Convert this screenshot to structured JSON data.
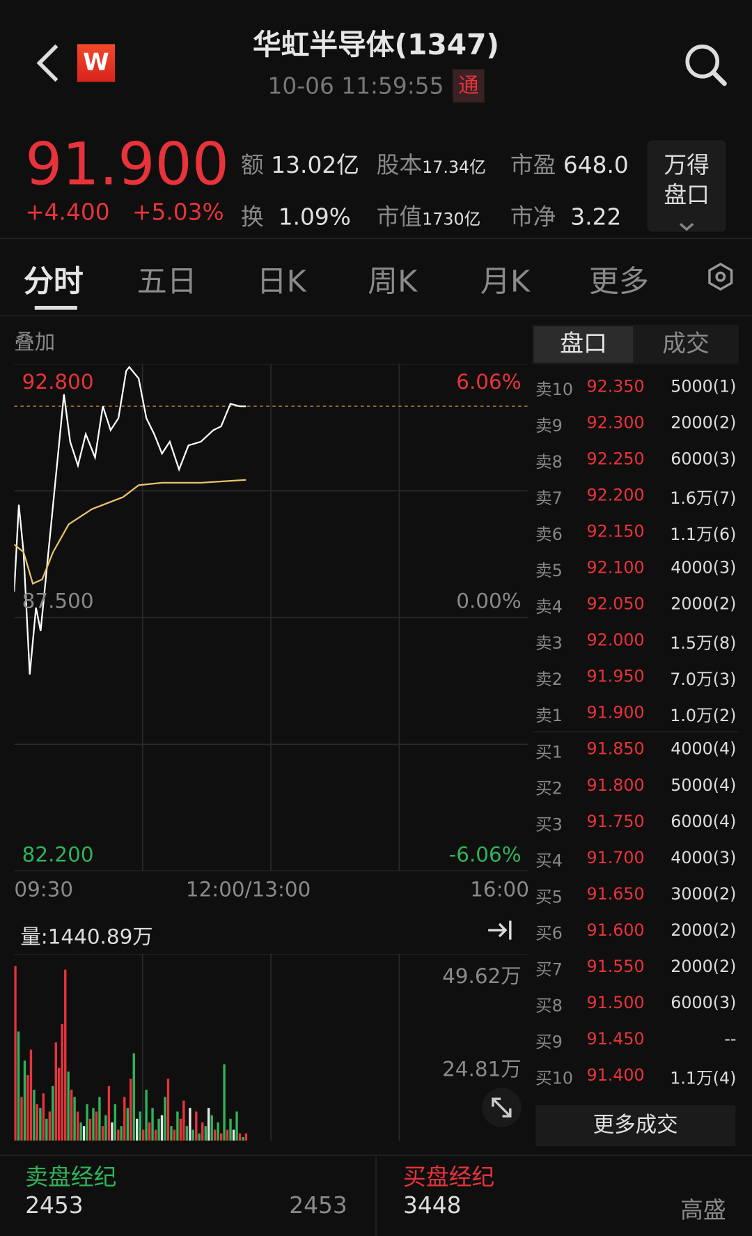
{
  "header": {
    "title": "华虹半导体(1347)",
    "datetime": "10-06 11:59:55",
    "connect_badge": "通",
    "logo": "W"
  },
  "quote": {
    "price": "91.900",
    "change": "+4.400",
    "change_pct": "+5.03%",
    "stats": [
      {
        "label": "额",
        "value": "13.02亿"
      },
      {
        "label": "股本",
        "value": "17.34亿"
      },
      {
        "label": "市盈",
        "value": "648.0"
      },
      {
        "label": "换",
        "value": "1.09%"
      },
      {
        "label": "市值",
        "value": "1730亿"
      },
      {
        "label": "市净",
        "value": "3.22"
      }
    ],
    "wind_button": [
      "万得",
      "盘口"
    ]
  },
  "tabs": [
    "分时",
    "五日",
    "日K",
    "周K",
    "月K",
    "更多"
  ],
  "active_tab": "分时",
  "overlay_label": "叠加",
  "orderbook_tabs": [
    "盘口",
    "成交"
  ],
  "chart_data": [
    {
      "type": "line",
      "y_labels": {
        "top": "92.800",
        "mid": "87.500",
        "bottom": "82.200"
      },
      "pct_labels": {
        "top": "6.06%",
        "mid": "0.00%",
        "bottom": "-6.06%"
      },
      "x_labels": [
        "09:30",
        "12:00/13:00",
        "16:00"
      ],
      "ylim": [
        82.2,
        92.8
      ],
      "prev_close": 87.5,
      "series": [
        {
          "color": "#ffffff",
          "x": [
            "09:30",
            "09:33",
            "09:36",
            "09:40",
            "09:44",
            "09:47",
            "09:51",
            "09:55",
            "09:59",
            "10:02",
            "10:06",
            "10:11",
            "10:16",
            "10:22",
            "10:27",
            "10:32",
            "10:37",
            "10:42",
            "10:44",
            "10:50",
            "10:55",
            "11:00",
            "11:05",
            "11:10",
            "11:16",
            "11:22",
            "11:30",
            "11:38",
            "11:43",
            "11:49",
            "11:55",
            "11:59"
          ],
          "y": [
            88.04,
            89.86,
            88.87,
            86.31,
            87.71,
            87.22,
            88.54,
            89.86,
            91.18,
            92.17,
            91.18,
            90.68,
            91.34,
            90.85,
            91.92,
            91.42,
            91.67,
            92.66,
            92.74,
            92.5,
            91.67,
            91.34,
            90.93,
            91.18,
            90.6,
            91.1,
            91.18,
            91.42,
            91.5,
            91.97,
            91.92,
            91.92
          ]
        },
        {
          "color": "#e8c36a",
          "x": [
            "09:30",
            "09:36",
            "09:42",
            "09:48",
            "09:55",
            "10:05",
            "10:20",
            "10:40",
            "10:50",
            "11:05",
            "11:30",
            "11:59"
          ],
          "y": [
            89.03,
            88.87,
            88.21,
            88.3,
            88.87,
            89.45,
            89.77,
            90.02,
            90.27,
            90.32,
            90.32,
            90.38
          ]
        }
      ]
    },
    {
      "type": "bar",
      "title": "量:1440.89万",
      "y_labels": [
        "49.62万",
        "24.81万"
      ],
      "ylim": [
        0,
        49.62
      ],
      "unit": "万",
      "values": [
        48,
        30,
        12,
        22,
        18,
        25,
        14,
        10,
        9,
        13,
        6,
        8,
        15,
        27,
        20,
        32,
        47,
        19,
        14,
        12,
        8,
        5,
        4,
        10,
        6,
        9,
        8,
        12,
        4,
        7,
        15,
        5,
        10,
        3,
        4,
        12,
        9,
        17,
        24,
        6,
        8,
        3,
        14,
        5,
        9,
        3,
        6,
        7,
        12,
        17,
        4,
        3,
        8,
        6,
        11,
        4,
        9,
        3,
        8,
        2,
        5,
        4,
        9,
        7,
        3,
        5,
        2,
        21,
        3,
        6,
        3,
        8,
        2,
        1,
        2
      ],
      "colors": "rgrgrrgrgrgrgrrrrgrgrgwgrgrgrgrwgrgrgrgwgrgrgrgwgrgrgrrgwgrgrgwgrgrgrgwgrg"
    }
  ],
  "orderbook": {
    "asks": [
      [
        "卖10",
        "92.350",
        "5000(1)"
      ],
      [
        "卖9",
        "92.300",
        "2000(2)"
      ],
      [
        "卖8",
        "92.250",
        "6000(3)"
      ],
      [
        "卖7",
        "92.200",
        "1.6万(7)"
      ],
      [
        "卖6",
        "92.150",
        "1.1万(6)"
      ],
      [
        "卖5",
        "92.100",
        "4000(3)"
      ],
      [
        "卖4",
        "92.050",
        "2000(2)"
      ],
      [
        "卖3",
        "92.000",
        "1.5万(8)"
      ],
      [
        "卖2",
        "91.950",
        "7.0万(3)"
      ],
      [
        "卖1",
        "91.900",
        "1.0万(2)"
      ]
    ],
    "bids": [
      [
        "买1",
        "91.850",
        "4000(4)"
      ],
      [
        "买2",
        "91.800",
        "5000(4)"
      ],
      [
        "买3",
        "91.750",
        "6000(4)"
      ],
      [
        "买4",
        "91.700",
        "4000(3)"
      ],
      [
        "买5",
        "91.650",
        "3000(2)"
      ],
      [
        "买6",
        "91.600",
        "2000(2)"
      ],
      [
        "买7",
        "91.550",
        "2000(2)"
      ],
      [
        "买8",
        "91.500",
        "6000(3)"
      ],
      [
        "买9",
        "91.450",
        "--"
      ],
      [
        "买10",
        "91.400",
        "1.1万(4)"
      ]
    ],
    "more_trades": "更多成交"
  },
  "brokers": {
    "sell": {
      "title": "卖盘经纪",
      "code": "2453",
      "name": "2453"
    },
    "buy": {
      "title": "买盘经纪",
      "code": "3448",
      "name": "高盛"
    }
  },
  "colors": {
    "up": "#e8333a",
    "down": "#2fb35a",
    "avg": "#e8c36a"
  }
}
